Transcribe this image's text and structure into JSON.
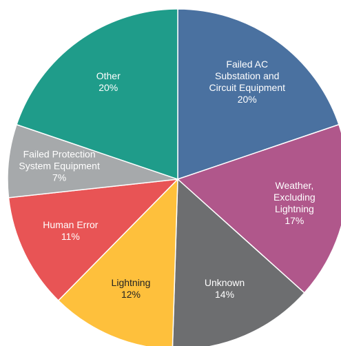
{
  "chart_data": {
    "type": "pie",
    "categories": [
      "Failed AC Substation and Circuit Equipment",
      "Weather, Excluding Lightning",
      "Unknown",
      "Lightning",
      "Human Error",
      "Failed Protection System Equipment",
      "Other"
    ],
    "values": [
      20,
      17,
      14,
      12,
      11,
      7,
      20
    ],
    "value_labels": [
      "20%",
      "17%",
      "14%",
      "12%",
      "11%",
      "7%",
      "20%"
    ],
    "colors": [
      "#4a71a0",
      "#b0578b",
      "#6d6e70",
      "#fec03c",
      "#e85455",
      "#a6a9ab",
      "#1f9c8a"
    ]
  }
}
